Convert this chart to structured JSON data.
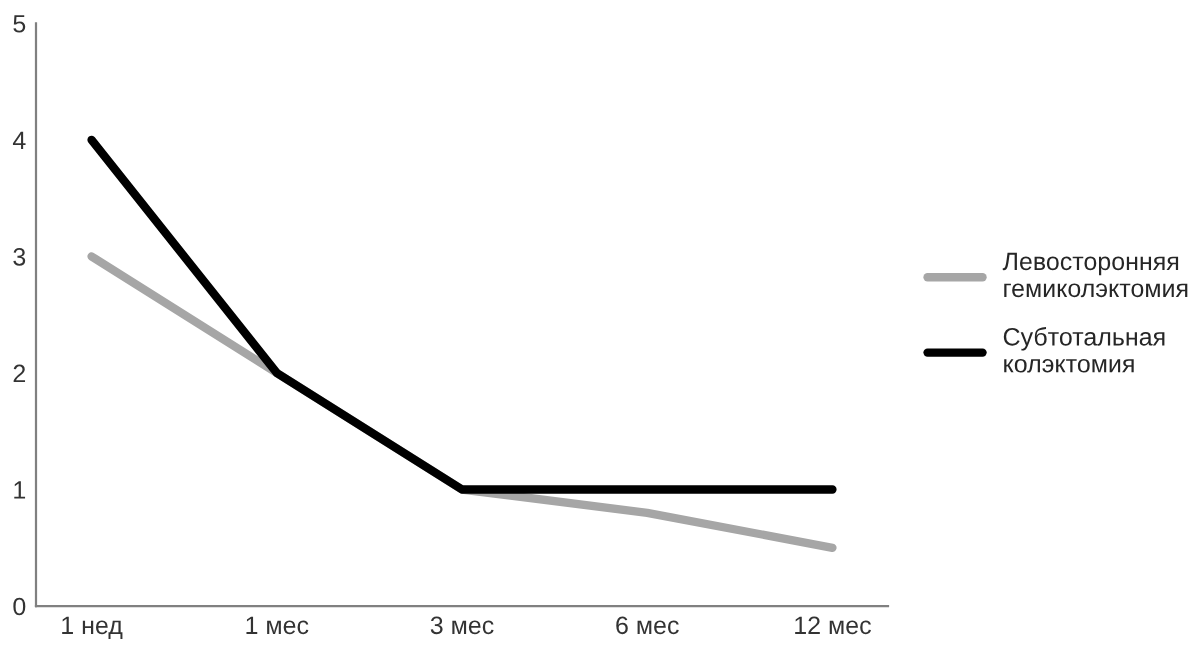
{
  "chart_data": {
    "type": "line",
    "categories": [
      "1 нед",
      "1 мес",
      "3 мес",
      "6 мес",
      "12 мес"
    ],
    "series": [
      {
        "name": "Левосторонняя\nгемиколэктомия",
        "color": "#a6a6a6",
        "values": [
          3,
          2,
          1,
          0.8,
          0.5
        ]
      },
      {
        "name": "Субтотальная\nколэктомия",
        "color": "#000000",
        "values": [
          4,
          2,
          1,
          1,
          1
        ]
      }
    ],
    "ylim": [
      0,
      5
    ],
    "yticks": [
      0,
      1,
      2,
      3,
      4,
      5
    ],
    "grid": false,
    "legend": "right",
    "marker": "none",
    "line_style": "solid"
  }
}
